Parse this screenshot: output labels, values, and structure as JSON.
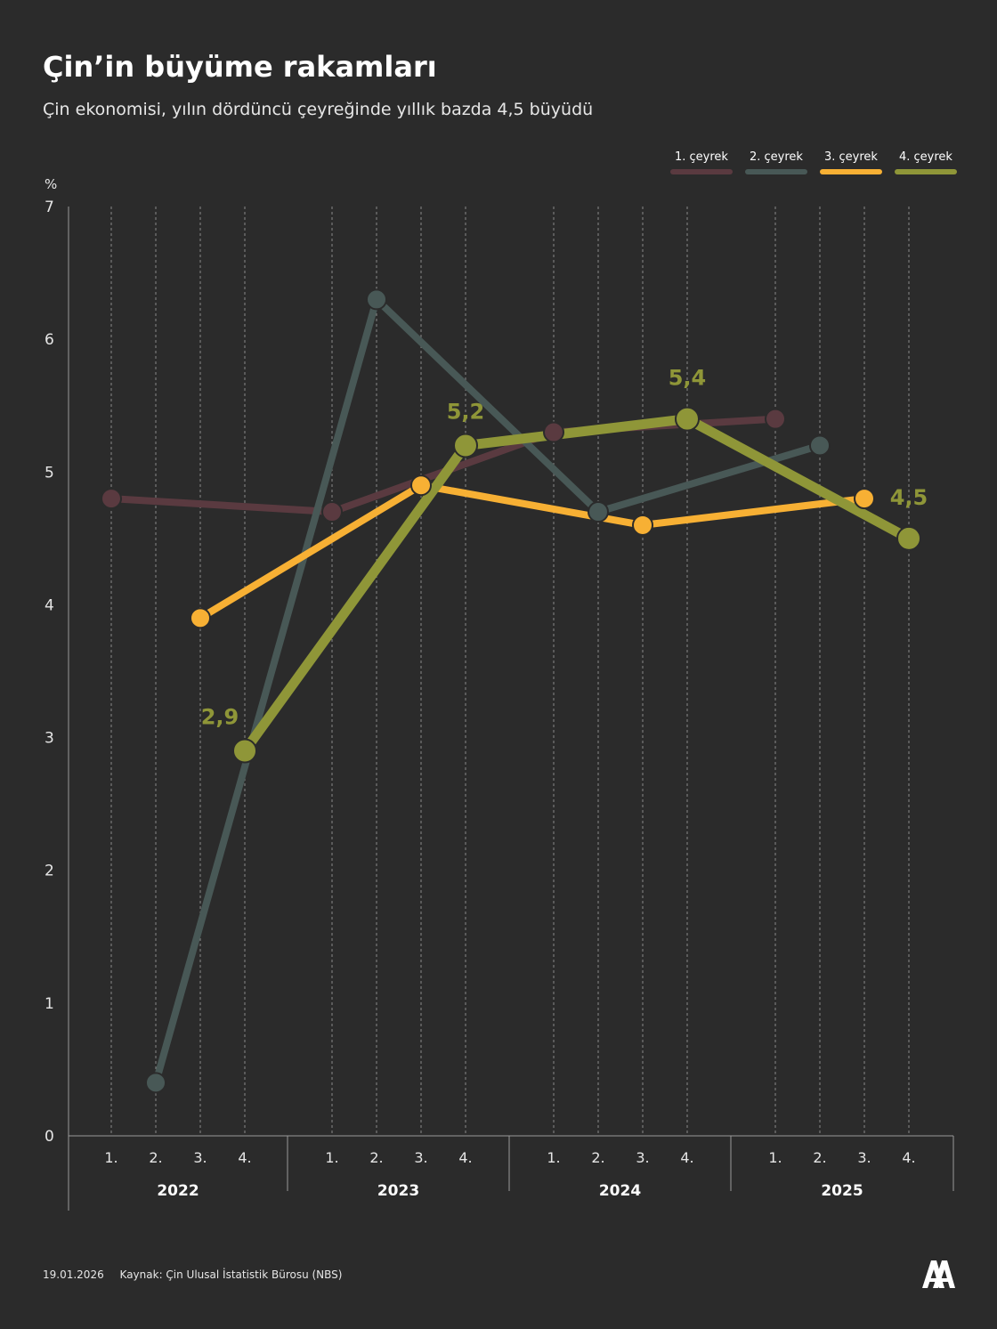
{
  "title": "Çin’in büyüme rakamları",
  "subtitle": "Çin ekonomisi,  yılın dördüncü çeyreğinde yıllık bazda 4,5 büyüdü",
  "footer": {
    "date": "19.01.2026",
    "source": "Kaynak: Çin Ulusal İstatistik Bürosu (NBS)"
  },
  "chart_data": {
    "type": "line",
    "title": "Çin’in büyüme rakamları",
    "ylabel": "%",
    "ylim": [
      0,
      7
    ],
    "yticks": [
      "0",
      "1",
      "2",
      "3",
      "4",
      "5",
      "6",
      "7"
    ],
    "years": [
      "2022",
      "2023",
      "2024",
      "2025"
    ],
    "quarter_labels": [
      "1.",
      "2.",
      "3.",
      "4."
    ],
    "grid": true,
    "legend_position": "top-right",
    "series": [
      {
        "name": "1.  çeyrek",
        "color": "#5a3a40",
        "values": [
          4.8,
          4.7,
          5.3,
          5.4
        ]
      },
      {
        "name": "2. çeyrek",
        "color": "#485856",
        "values": [
          0.4,
          6.3,
          4.7,
          5.2
        ]
      },
      {
        "name": "3. çeyrek",
        "color": "#f7b034",
        "values": [
          3.9,
          4.9,
          4.6,
          4.8
        ]
      },
      {
        "name": "4. çeyrek",
        "color": "#8f9638",
        "values": [
          2.9,
          5.2,
          5.4,
          4.5
        ]
      }
    ],
    "data_labels": [
      {
        "series": 3,
        "year": 0,
        "text": "2,9"
      },
      {
        "series": 3,
        "year": 1,
        "text": "5,2"
      },
      {
        "series": 3,
        "year": 2,
        "text": "5,4"
      },
      {
        "series": 3,
        "year": 3,
        "text": "4,5"
      }
    ]
  }
}
